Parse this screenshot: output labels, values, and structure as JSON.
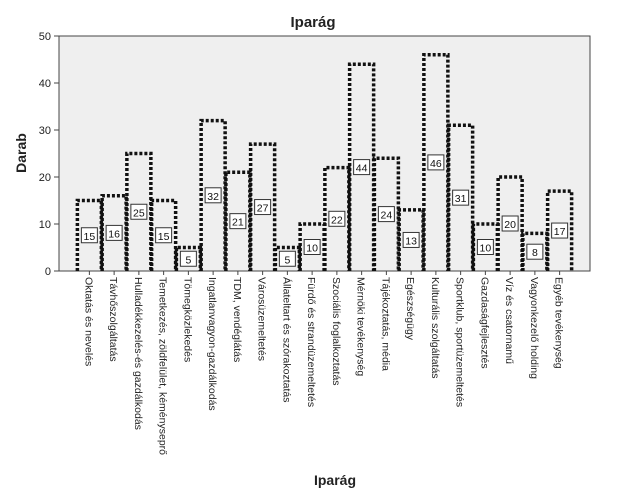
{
  "chart_data": {
    "type": "bar",
    "title": "Iparág",
    "xlabel": "Iparág",
    "ylabel": "Darab",
    "ylim": [
      0,
      50
    ],
    "yticks": [
      0,
      10,
      20,
      30,
      40,
      50
    ],
    "grid": false,
    "bar_style": "dotted outline",
    "colors": {
      "plot_bg": "#efefef",
      "bar_outline": "#111111",
      "label_box": "#ffffff"
    },
    "categories": [
      "Oktatás és nevelés",
      "Távhőszolgáltatás",
      "Hulladékkezelés-és gazdálkodás",
      "Temetkezés, zöldfelület, kéményseprő",
      "Tömegközlekedés",
      "Ingatlanvagyon-gazdálkodás",
      "TDM, vendéglátás",
      "Városüzemeltetés",
      "Állateltart és szórakoztatás",
      "Fürdő és strandüzemeltetés",
      "Szociális foglalkoztatás",
      "Mérnöki tevékenység",
      "Tájékoztatás, média",
      "Egészségügy",
      "Kulturális szolgáltatás",
      "Sportklub, sportüzemeltetés",
      "Gazdaságfejlesztés",
      "Víz és csatornamű",
      "Vagyonkezelő holding",
      "Egyéb tevékenység"
    ],
    "values": [
      15,
      16,
      25,
      15,
      5,
      32,
      21,
      27,
      5,
      10,
      22,
      44,
      24,
      13,
      46,
      31,
      10,
      20,
      8,
      17
    ]
  }
}
